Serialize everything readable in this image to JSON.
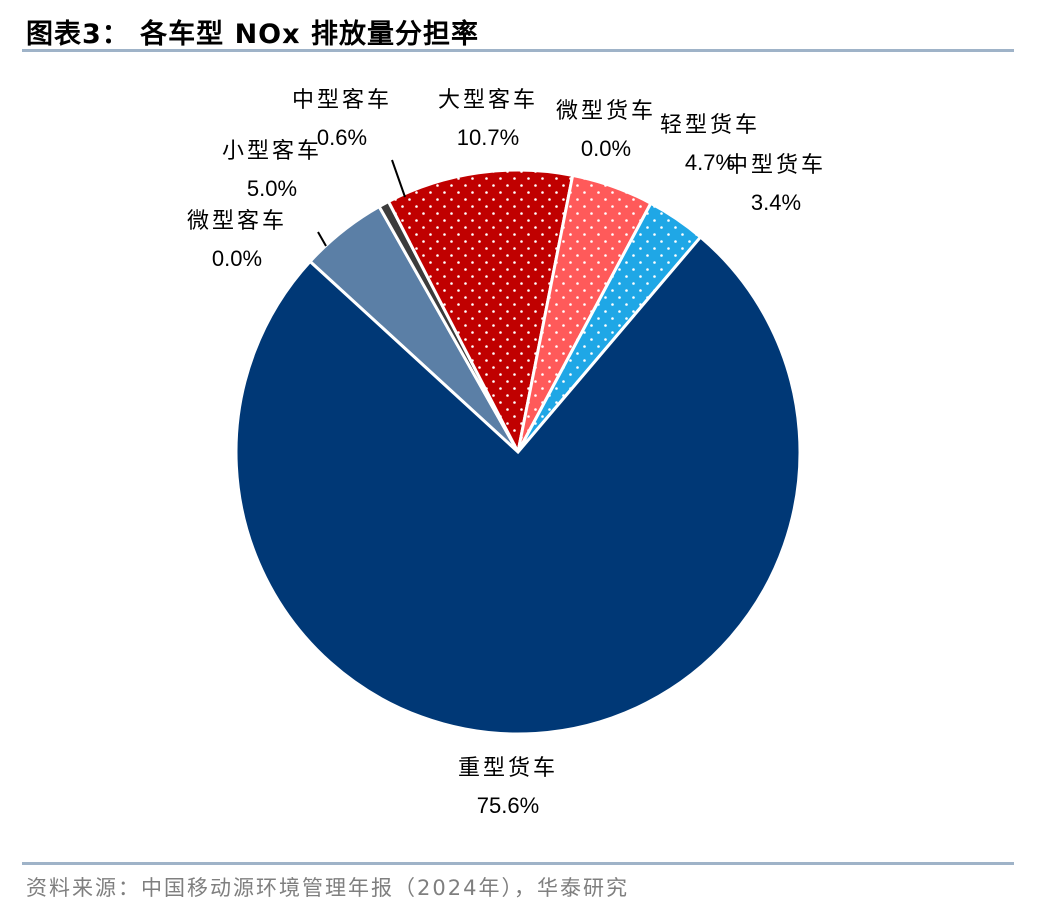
{
  "title": "图表3：  各车型 NOx 排放量分担率",
  "source": "资料来源：中国移动源环境管理年报（2024年），华泰研究",
  "chart_data": {
    "type": "pie",
    "title": "各车型 NOx 排放量分担率",
    "slices": [
      {
        "name": "微型客车",
        "value": 0.0,
        "label": "0.0%",
        "color": "#6b7f99"
      },
      {
        "name": "小型客车",
        "value": 5.0,
        "label": "5.0%",
        "color": "#5b7fa6"
      },
      {
        "name": "中型客车",
        "value": 0.6,
        "label": "0.6%",
        "color": "#3c3c3c"
      },
      {
        "name": "大型客车",
        "value": 10.7,
        "label": "10.7%",
        "color": "#c00000",
        "pattern": "white-dots"
      },
      {
        "name": "微型货车",
        "value": 0.0,
        "label": "0.0%",
        "color": "#ff5a5a",
        "pattern": "white-dots"
      },
      {
        "name": "轻型货车",
        "value": 4.7,
        "label": "4.7%",
        "color": "#ff5a5a",
        "pattern": "white-dots"
      },
      {
        "name": "中型货车",
        "value": 3.4,
        "label": "3.4%",
        "color": "#1fa7e6",
        "pattern": "white-dots"
      },
      {
        "name": "重型货车",
        "value": 75.6,
        "label": "75.6%",
        "color": "#003876"
      }
    ]
  }
}
